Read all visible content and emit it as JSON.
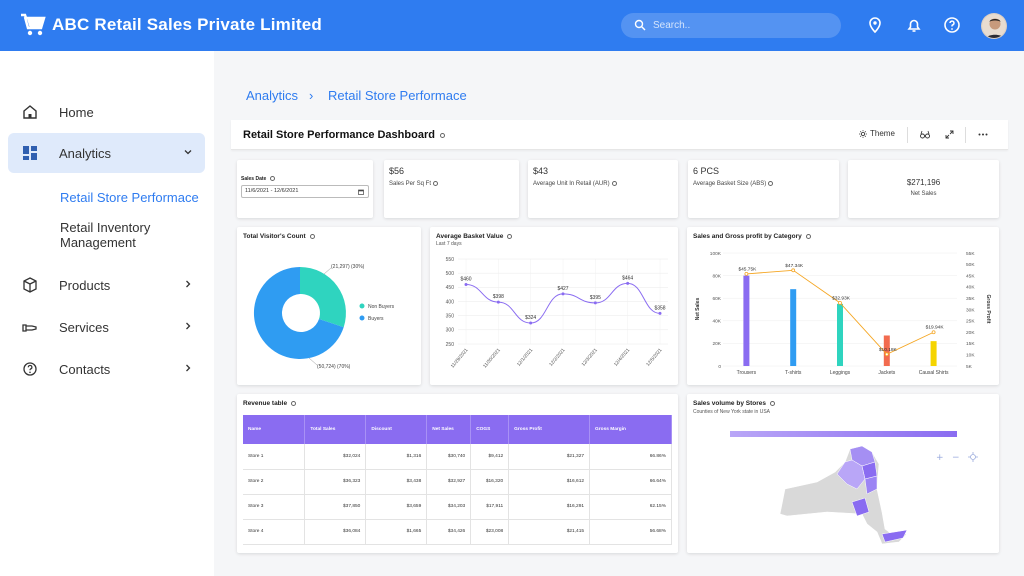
{
  "header": {
    "title": "ABC Retail Sales Private Limited",
    "search_placeholder": "Search..",
    "bg": "#2f7cf0"
  },
  "sidebar": {
    "items": [
      {
        "label": "Home",
        "icon": "home-icon"
      },
      {
        "label": "Analytics",
        "icon": "dashboard-icon",
        "active": true
      },
      {
        "label": "Products",
        "icon": "box-icon"
      },
      {
        "label": "Services",
        "icon": "hand-icon"
      },
      {
        "label": "Contacts",
        "icon": "help-icon"
      }
    ],
    "sub_items": [
      "Retail Store Performace",
      "Retail Inventory",
      "Management"
    ]
  },
  "breadcrumb": {
    "root": "Analytics",
    "sep": "›",
    "current": "Retail Store Performace"
  },
  "dashboard": {
    "title": "Retail Store Performance Dashboard",
    "theme_label": "Theme"
  },
  "kpis": {
    "sales_date_label": "Sales Date",
    "sales_date_value": "11/6/2021 - 12/6/2021",
    "sales_per_sqft": {
      "value": "$56",
      "label": "Sales Per Sq Ft"
    },
    "aur": {
      "value": "$43",
      "label": "Average Unit In Retail (AUR)"
    },
    "abs": {
      "value": "6 PCS",
      "label": "Average Basket Size (ABS)"
    },
    "net_sales": {
      "value": "$271,196",
      "label": "Net Sales"
    }
  },
  "visitors": {
    "title": "Total Visitor's Count",
    "legend": [
      "Non Buyers",
      "Buyers"
    ],
    "label_non_buyers": "(21,297) (30%)",
    "label_buyers": "(50,724) (70%)",
    "colors": {
      "non_buyers": "#2fd4bf",
      "buyers": "#2f9cf2"
    }
  },
  "basket": {
    "title": "Average Basket Value",
    "subtitle": "Last 7 days",
    "yticks": [
      "550",
      "500",
      "450",
      "400",
      "350",
      "300",
      "250"
    ],
    "x": [
      "11/29/2021",
      "11/30/2021",
      "12/1/2021",
      "12/2/2021",
      "12/3/2021",
      "12/4/2021",
      "12/5/2021"
    ],
    "values": [
      460,
      398,
      324,
      427,
      395,
      464,
      358
    ],
    "labels": [
      "$460",
      "$398",
      "$324",
      "$427",
      "$395",
      "$464",
      "$358"
    ]
  },
  "category": {
    "title": "Sales and Gross profit by Category",
    "ylabel": "Net Sales",
    "y2label": "Gross Profit",
    "yticks": [
      "100K",
      "80K",
      "60K",
      "40K",
      "20K",
      "0"
    ],
    "y2ticks": [
      "55K",
      "50K",
      "45K",
      "40K",
      "35K",
      "30K",
      "25K",
      "20K",
      "15K",
      "10K",
      "5K"
    ],
    "categories": [
      "Trousers",
      "T-shirts",
      "Leggings",
      "Jackets",
      "Causal Shirts"
    ],
    "sales": [
      80,
      68,
      55,
      27,
      22
    ],
    "profit": [
      45.75,
      47.34,
      32.93,
      10.18,
      19.94
    ],
    "profit_labels": [
      "$45.75K",
      "$47.34K",
      "$32.93K",
      "$10.18K",
      "$19.94K"
    ],
    "colors": [
      "#8a6cf1",
      "#2f9cf2",
      "#2fd4bf",
      "#f26b4f",
      "#f5d400"
    ],
    "line_color": "#f5a623"
  },
  "revenue": {
    "title": "Revenue table",
    "columns": [
      "Name",
      "Total Sales",
      "Discount",
      "Net Sales",
      "COGS",
      "Gross Profit",
      "Gross Margin"
    ],
    "rows": [
      [
        "Store 1",
        "$32,024",
        "$1,316",
        "$30,740",
        "$9,412",
        "$21,327",
        "66.86%"
      ],
      [
        "Store 2",
        "$36,323",
        "$3,438",
        "$32,927",
        "$16,320",
        "$16,612",
        "66.64%"
      ],
      [
        "Store 3",
        "$37,850",
        "$3,659",
        "$34,203",
        "$17,911",
        "$16,291",
        "62.15%"
      ],
      [
        "Store 4",
        "$36,084",
        "$1,665",
        "$34,426",
        "$23,008",
        "$21,415",
        "56.68%"
      ]
    ]
  },
  "stores": {
    "title": "Sales volume by Stores",
    "subtitle": "Counties of New York state in USA"
  }
}
